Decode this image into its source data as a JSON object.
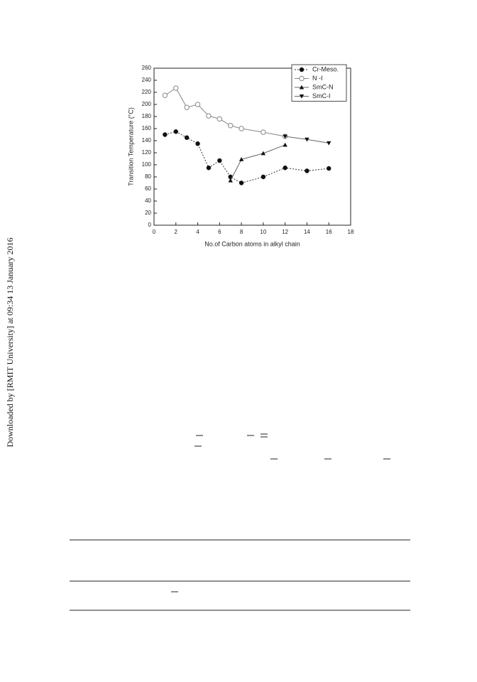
{
  "sidebar": "Downloaded by [RMIT University] at 09:34 13 January 2016",
  "chart_data": {
    "type": "line",
    "xlabel": "No.of Carbon atoms in alkyl chain",
    "ylabel": "Transition Temperature (°C)",
    "xlim": [
      0,
      18
    ],
    "xticks": [
      0,
      2,
      4,
      6,
      8,
      10,
      12,
      14,
      16,
      18
    ],
    "ylim": [
      0,
      260
    ],
    "yticks": [
      0,
      20,
      40,
      60,
      80,
      100,
      120,
      140,
      160,
      180,
      200,
      220,
      240,
      260
    ],
    "legend": "top-right",
    "series": [
      {
        "name": "Cr-Meso.",
        "color": "#333333",
        "marker": "circle-filled",
        "dash": true,
        "x": [
          1,
          2,
          3,
          4,
          5,
          6,
          7,
          8,
          10,
          12,
          14,
          16
        ],
        "values": [
          150,
          155,
          145,
          135,
          95,
          107,
          80,
          70,
          80,
          95,
          90,
          94
        ]
      },
      {
        "name": "N -I",
        "color": "#888888",
        "marker": "circle-open",
        "dash": false,
        "x": [
          1,
          2,
          3,
          4,
          5,
          6,
          7,
          8,
          10,
          12
        ],
        "values": [
          215,
          227,
          195,
          200,
          181,
          176,
          165,
          160,
          154,
          147
        ]
      },
      {
        "name": "SmC-N",
        "color": "#666666",
        "marker": "triangle-up",
        "dash": false,
        "x": [
          7,
          8,
          10,
          12
        ],
        "values": [
          74,
          109,
          119,
          133
        ]
      },
      {
        "name": "SmC-I",
        "color": "#666666",
        "marker": "triangle-down",
        "dash": false,
        "x": [
          12,
          14,
          16
        ],
        "values": [
          147,
          142,
          136
        ]
      }
    ]
  }
}
